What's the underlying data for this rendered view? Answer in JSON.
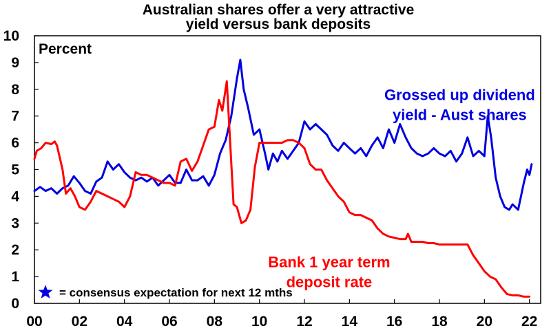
{
  "chart_data": {
    "type": "line",
    "title": [
      "Australian shares offer a very attractive",
      "yield versus bank deposits"
    ],
    "ylabel": "Percent",
    "xlim": [
      2000,
      2022.5
    ],
    "ylim": [
      0,
      10
    ],
    "x_ticks": [
      {
        "value": 2000,
        "label": "00"
      },
      {
        "value": 2002,
        "label": "02"
      },
      {
        "value": 2004,
        "label": "04"
      },
      {
        "value": 2006,
        "label": "06"
      },
      {
        "value": 2008,
        "label": "08"
      },
      {
        "value": 2010,
        "label": "10"
      },
      {
        "value": 2012,
        "label": "12"
      },
      {
        "value": 2014,
        "label": "14"
      },
      {
        "value": 2016,
        "label": "16"
      },
      {
        "value": 2018,
        "label": "18"
      },
      {
        "value": 2020,
        "label": "20"
      },
      {
        "value": 2022,
        "label": "22"
      }
    ],
    "y_ticks": [
      0,
      1,
      2,
      3,
      4,
      5,
      6,
      7,
      8,
      9,
      10
    ],
    "grid": false,
    "legend_note": "= consensus expectation for next 12 mths",
    "series": [
      {
        "name": "Grossed up dividend yield - Aust shares",
        "label_lines": [
          "Grossed up dividend",
          "yield - Aust shares"
        ],
        "color": "#0000e0",
        "points": [
          [
            2000.0,
            4.2
          ],
          [
            2000.25,
            4.35
          ],
          [
            2000.5,
            4.2
          ],
          [
            2000.75,
            4.3
          ],
          [
            2001.0,
            4.1
          ],
          [
            2001.25,
            4.3
          ],
          [
            2001.5,
            4.4
          ],
          [
            2001.75,
            4.75
          ],
          [
            2002.0,
            4.5
          ],
          [
            2002.25,
            4.2
          ],
          [
            2002.5,
            4.1
          ],
          [
            2002.75,
            4.55
          ],
          [
            2003.0,
            4.7
          ],
          [
            2003.25,
            5.3
          ],
          [
            2003.5,
            5.0
          ],
          [
            2003.75,
            5.2
          ],
          [
            2004.0,
            4.9
          ],
          [
            2004.25,
            4.7
          ],
          [
            2004.5,
            4.6
          ],
          [
            2004.75,
            4.7
          ],
          [
            2005.0,
            4.55
          ],
          [
            2005.25,
            4.7
          ],
          [
            2005.5,
            4.4
          ],
          [
            2005.75,
            4.6
          ],
          [
            2006.0,
            4.8
          ],
          [
            2006.25,
            4.5
          ],
          [
            2006.5,
            4.5
          ],
          [
            2006.75,
            5.0
          ],
          [
            2007.0,
            4.6
          ],
          [
            2007.25,
            4.6
          ],
          [
            2007.5,
            4.75
          ],
          [
            2007.75,
            4.4
          ],
          [
            2008.0,
            4.8
          ],
          [
            2008.25,
            5.6
          ],
          [
            2008.5,
            6.1
          ],
          [
            2008.75,
            7.0
          ],
          [
            2009.0,
            8.4
          ],
          [
            2009.15,
            9.1
          ],
          [
            2009.3,
            8.0
          ],
          [
            2009.5,
            7.3
          ],
          [
            2009.75,
            6.3
          ],
          [
            2010.0,
            6.5
          ],
          [
            2010.25,
            5.6
          ],
          [
            2010.4,
            5.0
          ],
          [
            2010.6,
            5.6
          ],
          [
            2010.8,
            5.3
          ],
          [
            2011.0,
            5.7
          ],
          [
            2011.25,
            5.4
          ],
          [
            2011.5,
            5.7
          ],
          [
            2011.75,
            6.0
          ],
          [
            2012.0,
            6.8
          ],
          [
            2012.25,
            6.5
          ],
          [
            2012.5,
            6.7
          ],
          [
            2012.75,
            6.5
          ],
          [
            2013.0,
            6.3
          ],
          [
            2013.25,
            5.9
          ],
          [
            2013.5,
            5.7
          ],
          [
            2013.75,
            6.0
          ],
          [
            2014.0,
            5.8
          ],
          [
            2014.25,
            5.6
          ],
          [
            2014.5,
            5.8
          ],
          [
            2014.75,
            5.5
          ],
          [
            2015.0,
            5.9
          ],
          [
            2015.25,
            6.2
          ],
          [
            2015.5,
            5.8
          ],
          [
            2015.75,
            6.5
          ],
          [
            2016.0,
            6.0
          ],
          [
            2016.25,
            6.7
          ],
          [
            2016.5,
            6.2
          ],
          [
            2016.75,
            5.8
          ],
          [
            2017.0,
            5.6
          ],
          [
            2017.25,
            5.5
          ],
          [
            2017.5,
            5.6
          ],
          [
            2017.75,
            5.8
          ],
          [
            2018.0,
            5.6
          ],
          [
            2018.25,
            5.5
          ],
          [
            2018.5,
            5.7
          ],
          [
            2018.75,
            5.3
          ],
          [
            2019.0,
            5.6
          ],
          [
            2019.25,
            6.2
          ],
          [
            2019.5,
            5.5
          ],
          [
            2019.75,
            5.7
          ],
          [
            2020.0,
            5.5
          ],
          [
            2020.15,
            7.0
          ],
          [
            2020.3,
            6.2
          ],
          [
            2020.5,
            4.7
          ],
          [
            2020.7,
            4.0
          ],
          [
            2020.9,
            3.6
          ],
          [
            2021.1,
            3.5
          ],
          [
            2021.25,
            3.7
          ],
          [
            2021.5,
            3.5
          ],
          [
            2021.75,
            4.5
          ],
          [
            2021.9,
            5.0
          ],
          [
            2022.0,
            4.8
          ],
          [
            2022.1,
            5.2
          ]
        ]
      },
      {
        "name": "Bank 1 year term deposit rate",
        "label_lines": [
          "Bank 1 year term",
          "deposit rate"
        ],
        "color": "#ff0000",
        "points": [
          [
            2000.0,
            5.4
          ],
          [
            2000.1,
            5.7
          ],
          [
            2000.3,
            5.8
          ],
          [
            2000.5,
            6.0
          ],
          [
            2000.75,
            5.95
          ],
          [
            2000.9,
            6.05
          ],
          [
            2001.0,
            5.9
          ],
          [
            2001.25,
            5.0
          ],
          [
            2001.4,
            4.1
          ],
          [
            2001.6,
            4.3
          ],
          [
            2001.8,
            4.0
          ],
          [
            2002.0,
            3.6
          ],
          [
            2002.25,
            3.5
          ],
          [
            2002.5,
            3.8
          ],
          [
            2002.75,
            4.2
          ],
          [
            2003.0,
            4.1
          ],
          [
            2003.25,
            4.0
          ],
          [
            2003.5,
            3.9
          ],
          [
            2003.75,
            3.8
          ],
          [
            2004.0,
            3.6
          ],
          [
            2004.25,
            4.0
          ],
          [
            2004.5,
            4.9
          ],
          [
            2004.75,
            4.8
          ],
          [
            2005.0,
            4.8
          ],
          [
            2005.25,
            4.7
          ],
          [
            2005.5,
            4.6
          ],
          [
            2005.75,
            4.5
          ],
          [
            2006.0,
            4.5
          ],
          [
            2006.25,
            4.4
          ],
          [
            2006.5,
            5.3
          ],
          [
            2006.75,
            5.4
          ],
          [
            2007.0,
            4.95
          ],
          [
            2007.25,
            5.3
          ],
          [
            2007.5,
            5.9
          ],
          [
            2007.75,
            6.5
          ],
          [
            2008.0,
            6.6
          ],
          [
            2008.2,
            7.6
          ],
          [
            2008.35,
            7.2
          ],
          [
            2008.55,
            8.3
          ],
          [
            2008.7,
            6.0
          ],
          [
            2008.85,
            3.7
          ],
          [
            2009.0,
            3.6
          ],
          [
            2009.2,
            3.0
          ],
          [
            2009.4,
            3.1
          ],
          [
            2009.6,
            3.5
          ],
          [
            2009.8,
            5.1
          ],
          [
            2010.0,
            6.0
          ],
          [
            2010.25,
            6.0
          ],
          [
            2010.5,
            6.0
          ],
          [
            2010.75,
            6.0
          ],
          [
            2011.0,
            6.0
          ],
          [
            2011.25,
            6.1
          ],
          [
            2011.5,
            6.1
          ],
          [
            2011.75,
            6.0
          ],
          [
            2012.0,
            5.8
          ],
          [
            2012.25,
            5.2
          ],
          [
            2012.5,
            5.0
          ],
          [
            2012.75,
            5.0
          ],
          [
            2013.0,
            4.6
          ],
          [
            2013.25,
            4.3
          ],
          [
            2013.5,
            4.0
          ],
          [
            2013.75,
            3.8
          ],
          [
            2014.0,
            3.4
          ],
          [
            2014.25,
            3.3
          ],
          [
            2014.5,
            3.3
          ],
          [
            2014.75,
            3.2
          ],
          [
            2015.0,
            3.1
          ],
          [
            2015.25,
            2.8
          ],
          [
            2015.5,
            2.6
          ],
          [
            2015.75,
            2.5
          ],
          [
            2016.0,
            2.45
          ],
          [
            2016.25,
            2.4
          ],
          [
            2016.5,
            2.4
          ],
          [
            2016.6,
            2.6
          ],
          [
            2016.75,
            2.3
          ],
          [
            2017.0,
            2.3
          ],
          [
            2017.25,
            2.3
          ],
          [
            2017.5,
            2.25
          ],
          [
            2017.75,
            2.25
          ],
          [
            2018.0,
            2.2
          ],
          [
            2018.5,
            2.2
          ],
          [
            2019.0,
            2.2
          ],
          [
            2019.25,
            2.2
          ],
          [
            2019.5,
            1.8
          ],
          [
            2019.75,
            1.5
          ],
          [
            2020.0,
            1.2
          ],
          [
            2020.25,
            1.0
          ],
          [
            2020.5,
            0.9
          ],
          [
            2020.75,
            0.6
          ],
          [
            2021.0,
            0.35
          ],
          [
            2021.25,
            0.3
          ],
          [
            2021.5,
            0.3
          ],
          [
            2021.75,
            0.25
          ],
          [
            2022.0,
            0.25
          ]
        ]
      }
    ],
    "annotations": [
      {
        "series": 0,
        "x": 2018.9,
        "y": 7.6
      },
      {
        "series": 1,
        "x": 2013.1,
        "y": 1.35
      }
    ]
  }
}
